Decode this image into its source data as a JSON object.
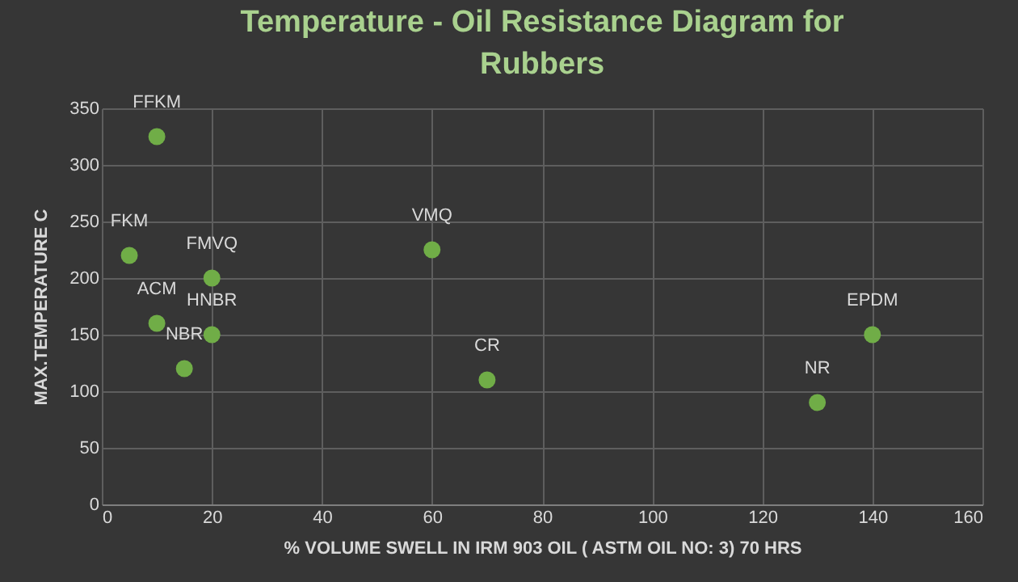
{
  "chart_data": {
    "type": "scatter",
    "title": "Temperature - Oil Resistance Diagram for Rubbers",
    "xlabel": "% VOLUME SWELL IN IRM 903 OIL ( ASTM OIL NO: 3) 70 HRS",
    "ylabel": "MAX.TEMPERATURE C",
    "x": [
      10,
      5,
      20,
      10,
      20,
      15,
      60,
      70,
      130,
      140
    ],
    "series": [
      {
        "color": "#70ad47",
        "values": [
          325,
          220,
          200,
          160,
          150,
          120,
          225,
          110,
          90,
          150
        ]
      }
    ],
    "annotations": [
      {
        "text": "FFKM",
        "x": 10,
        "y": 325
      },
      {
        "text": "FKM",
        "x": 5,
        "y": 220
      },
      {
        "text": "FMVQ",
        "x": 20,
        "y": 200
      },
      {
        "text": "ACM",
        "x": 10,
        "y": 160
      },
      {
        "text": "HNBR",
        "x": 20,
        "y": 150
      },
      {
        "text": "NBR",
        "x": 15,
        "y": 120
      },
      {
        "text": "VMQ",
        "x": 60,
        "y": 225
      },
      {
        "text": "CR",
        "x": 70,
        "y": 110
      },
      {
        "text": "NR",
        "x": 130,
        "y": 90
      },
      {
        "text": "EPDM",
        "x": 140,
        "y": 150
      }
    ],
    "xlim": [
      0,
      160
    ],
    "xticks": [
      0,
      20,
      40,
      60,
      80,
      100,
      120,
      140,
      160
    ],
    "ylim": [
      0,
      350
    ],
    "yticks": [
      0,
      50,
      100,
      150,
      200,
      250,
      300,
      350
    ],
    "grid": true,
    "marker": "circle"
  }
}
